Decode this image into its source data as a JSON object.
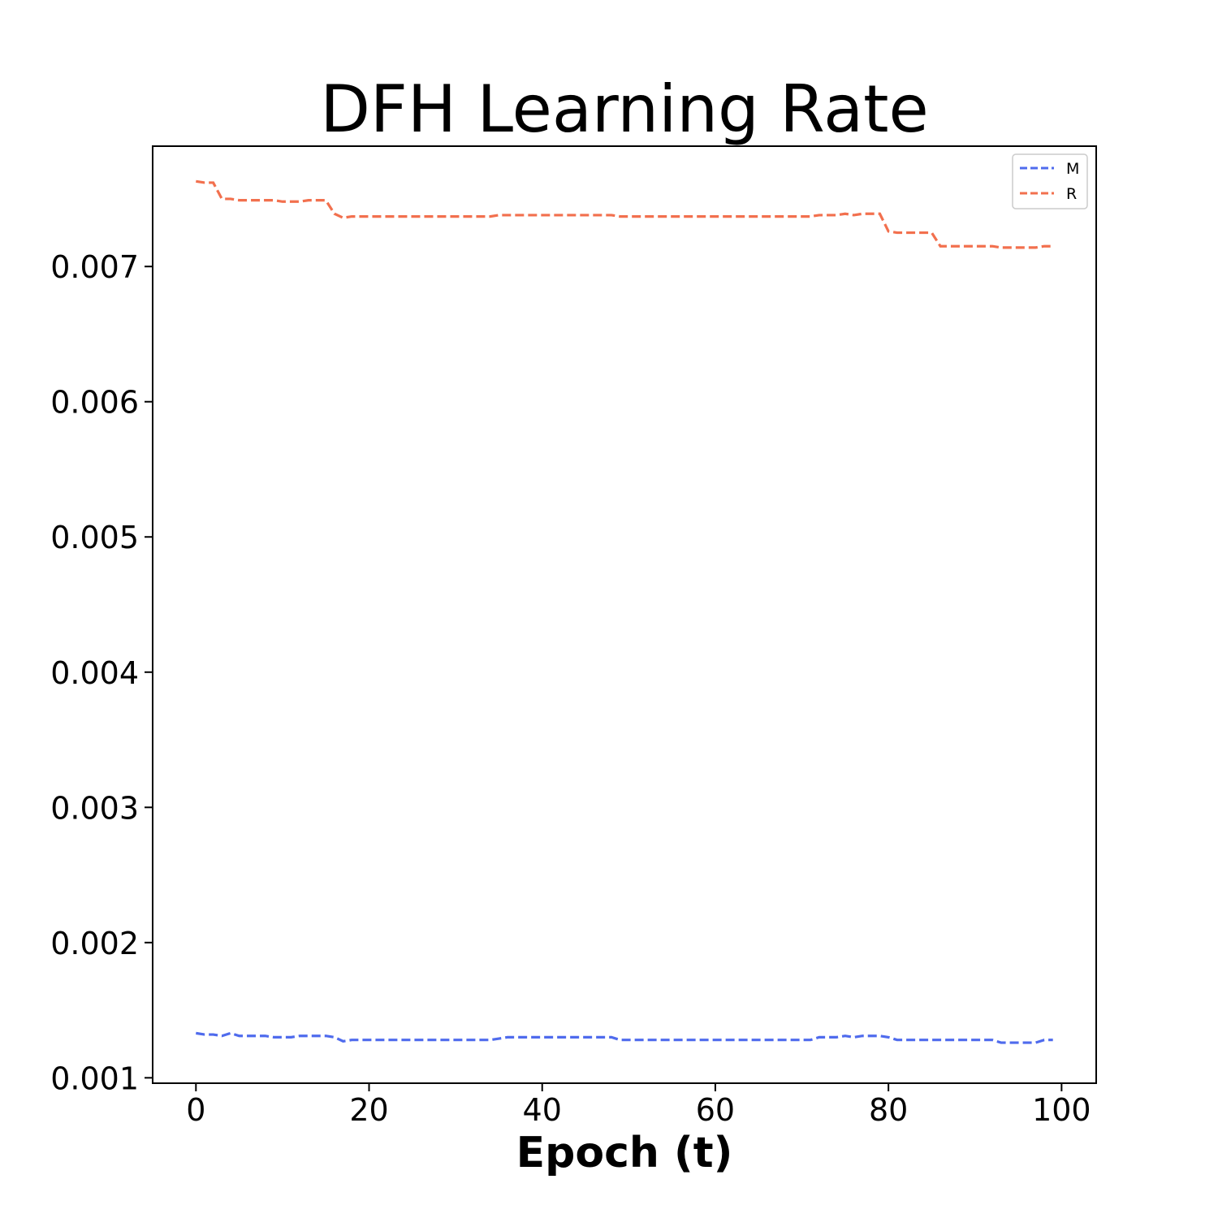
{
  "chart_data": {
    "type": "line",
    "title": "DFH Learning Rate",
    "xlabel": "Epoch (t)",
    "ylabel": "",
    "xlim": [
      -5,
      104
    ],
    "ylim": [
      0.00096,
      0.00789
    ],
    "xticks": [
      0,
      20,
      40,
      60,
      80,
      100
    ],
    "xtick_labels": [
      "0",
      "20",
      "40",
      "60",
      "80",
      "100"
    ],
    "yticks": [
      0.001,
      0.002,
      0.003,
      0.004,
      0.005,
      0.006,
      0.007
    ],
    "ytick_labels": [
      "0.001",
      "0.002",
      "0.003",
      "0.004",
      "0.005",
      "0.006",
      "0.007"
    ],
    "grid": false,
    "legend_position": "top-right",
    "x": [
      0,
      1,
      2,
      3,
      4,
      5,
      6,
      7,
      8,
      9,
      10,
      11,
      12,
      13,
      14,
      15,
      16,
      17,
      18,
      19,
      20,
      21,
      22,
      23,
      24,
      25,
      26,
      27,
      28,
      29,
      30,
      31,
      32,
      33,
      34,
      35,
      36,
      37,
      38,
      39,
      40,
      41,
      42,
      43,
      44,
      45,
      46,
      47,
      48,
      49,
      50,
      51,
      52,
      53,
      54,
      55,
      56,
      57,
      58,
      59,
      60,
      61,
      62,
      63,
      64,
      65,
      66,
      67,
      68,
      69,
      70,
      71,
      72,
      73,
      74,
      75,
      76,
      77,
      78,
      79,
      80,
      81,
      82,
      83,
      84,
      85,
      86,
      87,
      88,
      89,
      90,
      91,
      92,
      93,
      94,
      95,
      96,
      97,
      98,
      99
    ],
    "series": [
      {
        "name": "M",
        "color": "#4f6bed",
        "style": "dashed",
        "values": [
          0.00133,
          0.00132,
          0.00132,
          0.00131,
          0.00133,
          0.00131,
          0.00131,
          0.00131,
          0.00131,
          0.0013,
          0.0013,
          0.0013,
          0.00131,
          0.00131,
          0.00131,
          0.00131,
          0.0013,
          0.00127,
          0.00128,
          0.00128,
          0.00128,
          0.00128,
          0.00128,
          0.00128,
          0.00128,
          0.00128,
          0.00128,
          0.00128,
          0.00128,
          0.00128,
          0.00128,
          0.00128,
          0.00128,
          0.00128,
          0.00128,
          0.00129,
          0.0013,
          0.0013,
          0.0013,
          0.0013,
          0.0013,
          0.0013,
          0.0013,
          0.0013,
          0.0013,
          0.0013,
          0.0013,
          0.0013,
          0.0013,
          0.00128,
          0.00128,
          0.00128,
          0.00128,
          0.00128,
          0.00128,
          0.00128,
          0.00128,
          0.00128,
          0.00128,
          0.00128,
          0.00128,
          0.00128,
          0.00128,
          0.00128,
          0.00128,
          0.00128,
          0.00128,
          0.00128,
          0.00128,
          0.00128,
          0.00128,
          0.00128,
          0.0013,
          0.0013,
          0.0013,
          0.00131,
          0.0013,
          0.00131,
          0.00131,
          0.00131,
          0.0013,
          0.00128,
          0.00128,
          0.00128,
          0.00128,
          0.00128,
          0.00128,
          0.00128,
          0.00128,
          0.00128,
          0.00128,
          0.00128,
          0.00128,
          0.00126,
          0.00126,
          0.00126,
          0.00126,
          0.00126,
          0.00128,
          0.00128
        ]
      },
      {
        "name": "R",
        "color": "#f2704e",
        "style": "dashed",
        "values": [
          0.00763,
          0.00762,
          0.00762,
          0.0075,
          0.0075,
          0.00749,
          0.00749,
          0.00749,
          0.00749,
          0.00749,
          0.00748,
          0.00748,
          0.00748,
          0.00749,
          0.00749,
          0.00749,
          0.00739,
          0.00736,
          0.00737,
          0.00737,
          0.00737,
          0.00737,
          0.00737,
          0.00737,
          0.00737,
          0.00737,
          0.00737,
          0.00737,
          0.00737,
          0.00737,
          0.00737,
          0.00737,
          0.00737,
          0.00737,
          0.00737,
          0.00738,
          0.00738,
          0.00738,
          0.00738,
          0.00738,
          0.00738,
          0.00738,
          0.00738,
          0.00738,
          0.00738,
          0.00738,
          0.00738,
          0.00738,
          0.00738,
          0.00737,
          0.00737,
          0.00737,
          0.00737,
          0.00737,
          0.00737,
          0.00737,
          0.00737,
          0.00737,
          0.00737,
          0.00737,
          0.00737,
          0.00737,
          0.00737,
          0.00737,
          0.00737,
          0.00737,
          0.00737,
          0.00737,
          0.00737,
          0.00737,
          0.00737,
          0.00737,
          0.00738,
          0.00738,
          0.00738,
          0.00739,
          0.00738,
          0.00739,
          0.00739,
          0.00739,
          0.00726,
          0.00725,
          0.00725,
          0.00725,
          0.00725,
          0.00725,
          0.00715,
          0.00715,
          0.00715,
          0.00715,
          0.00715,
          0.00715,
          0.00715,
          0.00714,
          0.00714,
          0.00714,
          0.00714,
          0.00714,
          0.00715,
          0.00715
        ]
      }
    ]
  }
}
